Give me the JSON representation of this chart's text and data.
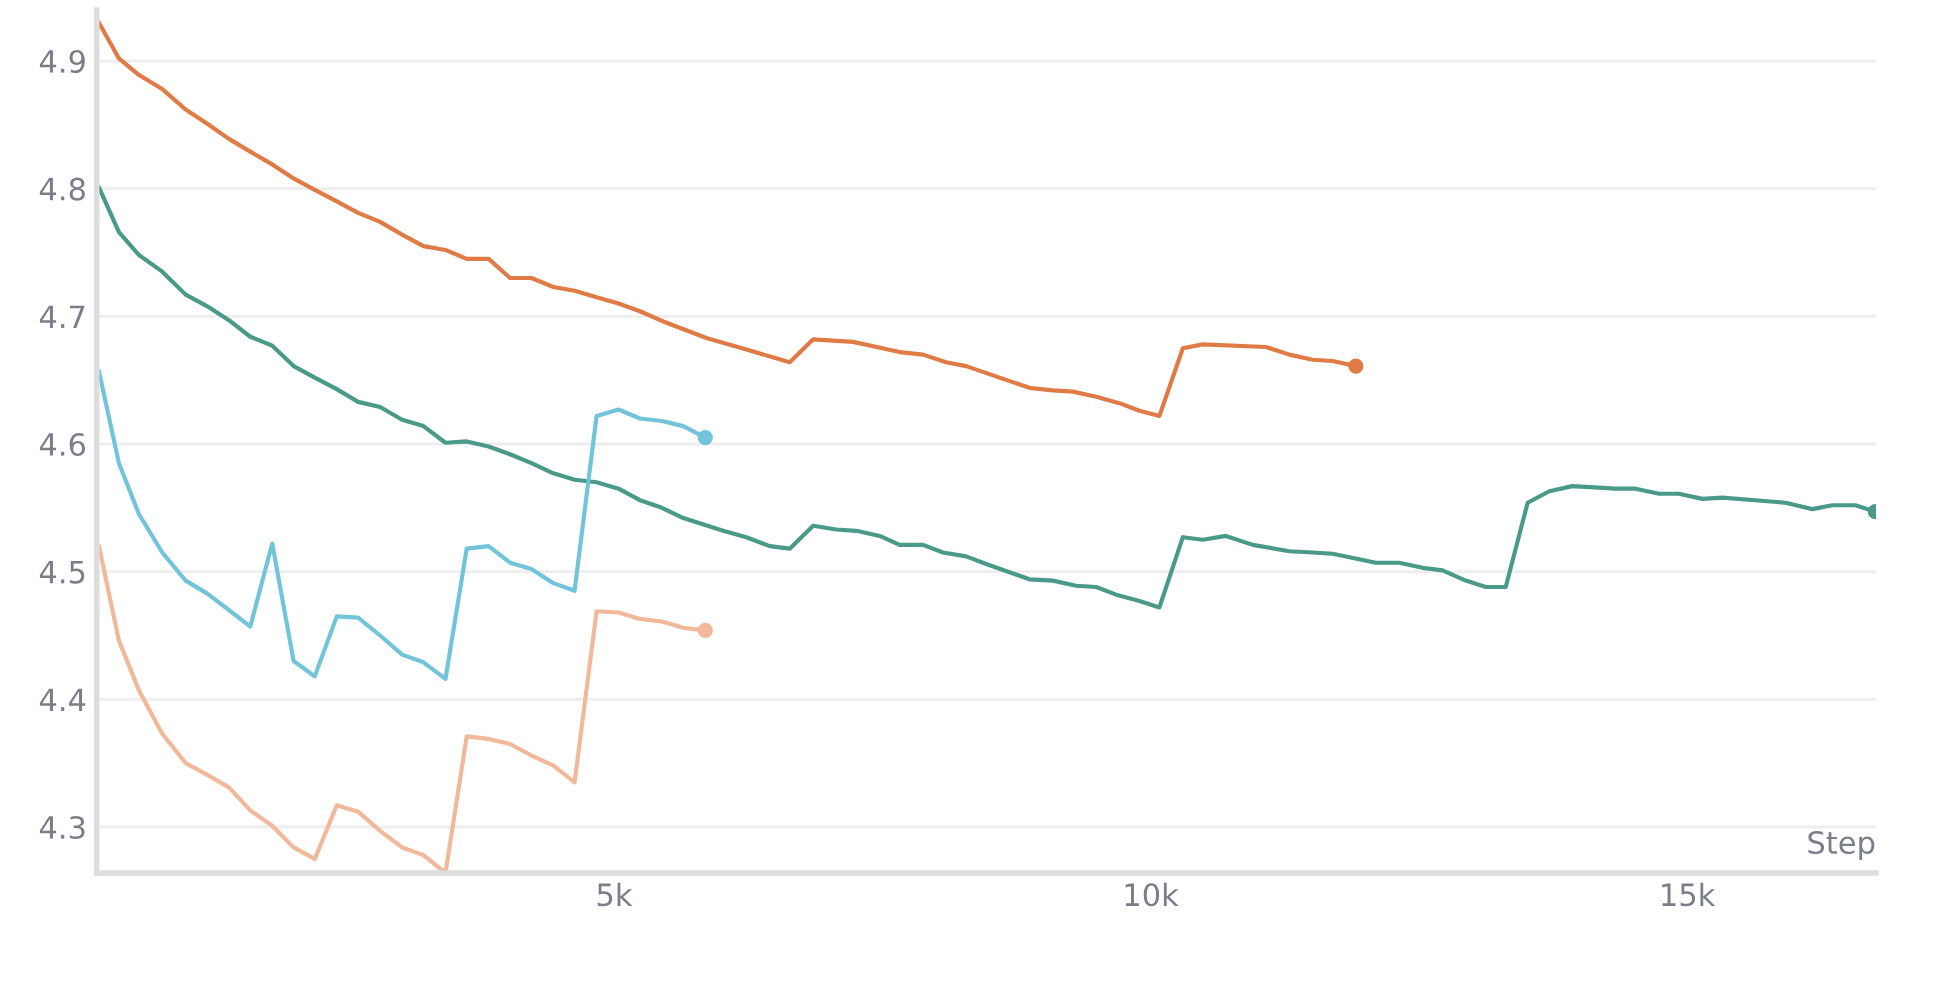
{
  "chart_data": {
    "type": "line",
    "xlabel": "Step",
    "xlim": [
      180,
      16760
    ],
    "ylim": [
      4.264,
      4.94
    ],
    "xticks": [
      {
        "value": 5000,
        "label": "5k"
      },
      {
        "value": 10000,
        "label": "10k"
      },
      {
        "value": 15000,
        "label": "15k"
      }
    ],
    "yticks": [
      4.3,
      4.4,
      4.5,
      4.6,
      4.7,
      4.8,
      4.9
    ],
    "grid": "y",
    "legend": false,
    "marker": "none",
    "line_style": "solid",
    "series": [
      {
        "color": "#e07b45",
        "x": [
          201,
          387,
          574,
          791,
          1009,
          1207,
          1412,
          1611,
          1816,
          2015,
          2212,
          2417,
          2616,
          2821,
          3026,
          3225,
          3430,
          3628,
          3832,
          4032,
          4231,
          4436,
          4633,
          4838,
          5043,
          5242,
          5459,
          5862,
          6234,
          6638,
          6856,
          7228,
          7662,
          7880,
          8096,
          8282,
          8593,
          8872,
          9090,
          9276,
          9493,
          9710,
          9897,
          10083,
          10301,
          10487,
          11075,
          11293,
          11511,
          11697,
          11913
        ],
        "values": [
          4.93,
          4.902,
          4.889,
          4.878,
          4.862,
          4.851,
          4.839,
          4.829,
          4.819,
          4.808,
          4.799,
          4.79,
          4.781,
          4.774,
          4.764,
          4.755,
          4.752,
          4.745,
          4.745,
          4.73,
          4.73,
          4.723,
          4.72,
          4.715,
          4.71,
          4.704,
          4.696,
          4.683,
          4.674,
          4.664,
          4.682,
          4.68,
          4.672,
          4.67,
          4.664,
          4.661,
          4.652,
          4.644,
          4.642,
          4.641,
          4.637,
          4.632,
          4.626,
          4.622,
          4.675,
          4.678,
          4.676,
          4.67,
          4.666,
          4.665,
          4.661
        ]
      },
      {
        "color": "#4a9a8a",
        "x": [
          201,
          387,
          574,
          791,
          1009,
          1207,
          1412,
          1611,
          1816,
          2015,
          2212,
          2417,
          2616,
          2821,
          3026,
          3225,
          3430,
          3628,
          3832,
          4032,
          4231,
          4436,
          4633,
          4838,
          5043,
          5242,
          5447,
          5646,
          6018,
          6234,
          6452,
          6638,
          6856,
          7072,
          7258,
          7476,
          7662,
          7880,
          8066,
          8282,
          8468,
          8872,
          9090,
          9306,
          9493,
          9679,
          9897,
          10083,
          10301,
          10487,
          10703,
          10952,
          11293,
          11511,
          11697,
          12099,
          12317,
          12535,
          12721,
          12937,
          13124,
          13310,
          13514,
          13716,
          13931,
          14334,
          14520,
          14738,
          14924,
          15142,
          15328,
          15916,
          16166,
          16352,
          16568,
          16755
        ],
        "values": [
          4.801,
          4.766,
          4.748,
          4.735,
          4.717,
          4.708,
          4.697,
          4.684,
          4.677,
          4.661,
          4.652,
          4.643,
          4.633,
          4.629,
          4.619,
          4.614,
          4.601,
          4.602,
          4.598,
          4.592,
          4.585,
          4.577,
          4.572,
          4.57,
          4.565,
          4.556,
          4.55,
          4.542,
          4.532,
          4.527,
          4.52,
          4.518,
          4.536,
          4.533,
          4.532,
          4.528,
          4.521,
          4.521,
          4.515,
          4.512,
          4.506,
          4.494,
          4.493,
          4.489,
          4.488,
          4.482,
          4.477,
          4.472,
          4.527,
          4.525,
          4.528,
          4.521,
          4.516,
          4.515,
          4.514,
          4.507,
          4.507,
          4.503,
          4.501,
          4.493,
          4.488,
          4.488,
          4.554,
          4.563,
          4.567,
          4.565,
          4.565,
          4.561,
          4.561,
          4.557,
          4.558,
          4.554,
          4.549,
          4.552,
          4.552,
          4.547
        ]
      },
      {
        "color": "#72c4da",
        "x": [
          201,
          387,
          574,
          791,
          1009,
          1207,
          1412,
          1611,
          1816,
          2015,
          2212,
          2417,
          2616,
          2821,
          3026,
          3225,
          3430,
          3628,
          3832,
          4032,
          4231,
          4436,
          4633,
          4838,
          5043,
          5242,
          5447,
          5646,
          5851
        ],
        "values": [
          4.657,
          4.585,
          4.545,
          4.515,
          4.493,
          4.483,
          4.47,
          4.457,
          4.522,
          4.43,
          4.418,
          4.465,
          4.464,
          4.45,
          4.435,
          4.429,
          4.416,
          4.518,
          4.52,
          4.507,
          4.502,
          4.491,
          4.485,
          4.622,
          4.627,
          4.62,
          4.618,
          4.614,
          4.605
        ]
      },
      {
        "color": "#f2b89a",
        "x": [
          201,
          387,
          574,
          791,
          1009,
          1207,
          1412,
          1611,
          1816,
          2015,
          2212,
          2417,
          2616,
          2821,
          3026,
          3225,
          3430,
          3628,
          3832,
          4032,
          4231,
          4436,
          4633,
          4838,
          5043,
          5242,
          5447,
          5646,
          5851
        ],
        "values": [
          4.52,
          4.446,
          4.407,
          4.373,
          4.35,
          4.341,
          4.331,
          4.313,
          4.301,
          4.284,
          4.275,
          4.317,
          4.312,
          4.297,
          4.284,
          4.278,
          4.264,
          4.371,
          4.369,
          4.365,
          4.356,
          4.348,
          4.335,
          4.469,
          4.468,
          4.463,
          4.461,
          4.456,
          4.454
        ]
      }
    ]
  }
}
